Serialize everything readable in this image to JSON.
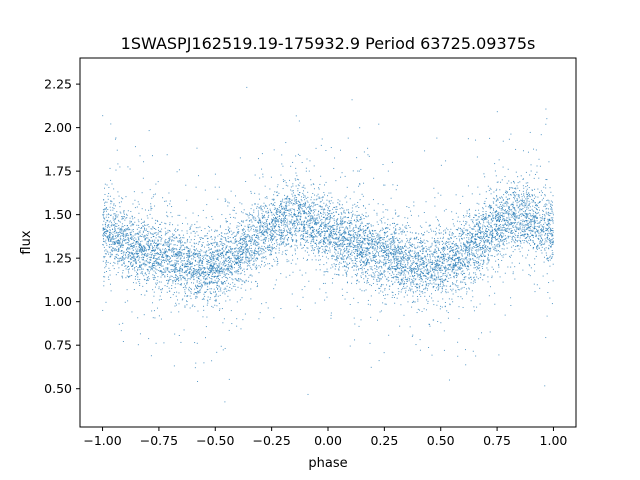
{
  "chart_data": {
    "type": "scatter",
    "title": "1SWASPJ162519.19-175932.9 Period 63725.09375s",
    "xlabel": "phase",
    "ylabel": "flux",
    "xlim": [
      -1.1,
      1.1
    ],
    "ylim": [
      0.28,
      2.4
    ],
    "xticks": [
      -1.0,
      -0.75,
      -0.5,
      -0.25,
      0.0,
      0.25,
      0.5,
      0.75,
      1.0
    ],
    "xtick_labels": [
      "−1.00",
      "−0.75",
      "−0.50",
      "−0.25",
      "0.00",
      "0.25",
      "0.50",
      "0.75",
      "1.00"
    ],
    "yticks": [
      0.5,
      0.75,
      1.0,
      1.25,
      1.5,
      1.75,
      2.0,
      2.25
    ],
    "ytick_labels": [
      "0.50",
      "0.75",
      "1.00",
      "1.25",
      "1.50",
      "1.75",
      "2.00",
      "2.25"
    ],
    "grid": false,
    "marker_color": "#1f77b4",
    "series": [
      {
        "x_range": [
          -1.0,
          1.0
        ],
        "y_range": [
          0.38,
          2.3
        ],
        "profile": {
          "x": [
            -1.0,
            -0.9,
            -0.8,
            -0.7,
            -0.6,
            -0.55,
            -0.5,
            -0.4,
            -0.3,
            -0.2,
            -0.15,
            -0.1,
            0.0,
            0.1,
            0.2,
            0.3,
            0.4,
            0.45,
            0.5,
            0.6,
            0.7,
            0.8,
            0.85,
            0.9,
            1.0
          ],
          "y": [
            1.4,
            1.34,
            1.29,
            1.25,
            1.21,
            1.2,
            1.21,
            1.27,
            1.38,
            1.47,
            1.49,
            1.47,
            1.4,
            1.34,
            1.29,
            1.25,
            1.21,
            1.2,
            1.21,
            1.27,
            1.38,
            1.47,
            1.49,
            1.47,
            1.4
          ]
        }
      }
    ]
  }
}
